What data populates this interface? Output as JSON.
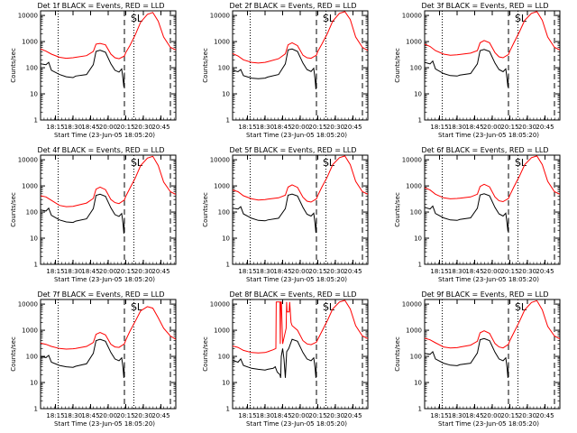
{
  "common": {
    "x_ticks": [
      "18:15",
      "18:30",
      "18:45",
      "20:00",
      "20:15",
      "20:30",
      "20:45"
    ],
    "y_ticks": [
      "1",
      "10",
      "100",
      "1000",
      "10000"
    ],
    "ylabel": "Counts/sec",
    "xlabel": "Start Time (23-Jun-05 18:05:20)",
    "annotation": "SL",
    "x_tick_times": [
      11,
      24,
      37,
      50,
      63,
      76,
      89
    ],
    "ylim": [
      1,
      15000
    ],
    "dotted_lines_x": [
      13,
      69
    ],
    "dashed_lines_x": [
      62,
      96
    ]
  },
  "chart_data": [
    {
      "type": "line",
      "yscale": "log",
      "xlim": [
        0,
        100
      ],
      "title": "Det 1f BLACK = Events, RED = LLD",
      "series": [
        {
          "name": "LLD",
          "color": "#ff0000",
          "x": [
            0,
            4,
            8,
            14,
            19,
            24,
            26,
            34,
            39,
            41,
            44,
            48,
            52,
            55,
            58,
            62,
            63,
            66,
            70,
            74,
            79,
            83,
            87,
            91,
            96,
            100
          ],
          "y": [
            520,
            430,
            330,
            250,
            230,
            240,
            250,
            290,
            420,
            800,
            850,
            750,
            330,
            240,
            220,
            280,
            380,
            700,
            1800,
            5500,
            11000,
            13000,
            6000,
            1500,
            600,
            480
          ]
        },
        {
          "name": "Events",
          "color": "#000000",
          "x": [
            0,
            4,
            6,
            8,
            14,
            19,
            24,
            26,
            34,
            39,
            41,
            44,
            48,
            52,
            55,
            58,
            60,
            61,
            61.6,
            62
          ],
          "y": [
            140,
            130,
            160,
            80,
            55,
            45,
            42,
            48,
            55,
            130,
            420,
            470,
            390,
            140,
            80,
            68,
            90,
            35,
            18,
            65
          ]
        }
      ]
    },
    {
      "type": "line",
      "yscale": "log",
      "xlim": [
        0,
        100
      ],
      "title": "Det 2f BLACK = Events, RED = LLD",
      "series": [
        {
          "name": "LLD",
          "color": "#ff0000",
          "x": [
            0,
            4,
            8,
            14,
            19,
            24,
            26,
            34,
            39,
            41,
            44,
            48,
            52,
            55,
            58,
            62,
            63,
            66,
            70,
            74,
            79,
            83,
            87,
            91,
            96,
            100
          ],
          "y": [
            350,
            280,
            200,
            160,
            150,
            160,
            170,
            220,
            340,
            750,
            900,
            700,
            300,
            240,
            230,
            300,
            420,
            800,
            2000,
            6000,
            12000,
            14000,
            7000,
            1500,
            600,
            450
          ]
        },
        {
          "name": "Events",
          "color": "#000000",
          "x": [
            0,
            4,
            6,
            8,
            14,
            19,
            24,
            26,
            34,
            39,
            41,
            44,
            48,
            52,
            55,
            58,
            60,
            61,
            61.6,
            62
          ],
          "y": [
            80,
            70,
            85,
            50,
            40,
            38,
            40,
            44,
            55,
            140,
            480,
            520,
            420,
            150,
            85,
            72,
            95,
            35,
            15,
            60
          ]
        }
      ]
    },
    {
      "type": "line",
      "yscale": "log",
      "xlim": [
        0,
        100
      ],
      "title": "Det 3f BLACK = Events, RED = LLD",
      "series": [
        {
          "name": "LLD",
          "color": "#ff0000",
          "x": [
            0,
            4,
            8,
            14,
            19,
            24,
            26,
            34,
            39,
            41,
            44,
            48,
            52,
            55,
            58,
            62,
            63,
            66,
            70,
            74,
            79,
            83,
            87,
            91,
            96,
            100
          ],
          "y": [
            800,
            650,
            450,
            330,
            300,
            310,
            320,
            360,
            450,
            900,
            1100,
            900,
            380,
            260,
            240,
            320,
            430,
            900,
            2300,
            6500,
            12000,
            14000,
            6500,
            1500,
            600,
            480
          ]
        },
        {
          "name": "Events",
          "color": "#000000",
          "x": [
            0,
            4,
            6,
            8,
            14,
            19,
            24,
            26,
            34,
            39,
            41,
            44,
            48,
            52,
            55,
            58,
            60,
            61,
            61.6,
            62
          ],
          "y": [
            160,
            140,
            180,
            90,
            60,
            50,
            48,
            52,
            60,
            140,
            450,
            500,
            420,
            150,
            85,
            70,
            90,
            35,
            18,
            60
          ]
        }
      ]
    },
    {
      "type": "line",
      "yscale": "log",
      "xlim": [
        0,
        100
      ],
      "title": "Det 4f BLACK = Events, RED = LLD",
      "series": [
        {
          "name": "LLD",
          "color": "#ff0000",
          "x": [
            0,
            4,
            8,
            14,
            19,
            24,
            26,
            34,
            39,
            41,
            44,
            48,
            52,
            55,
            58,
            62,
            63,
            66,
            70,
            74,
            79,
            83,
            87,
            91,
            96,
            100
          ],
          "y": [
            420,
            380,
            280,
            180,
            160,
            165,
            175,
            220,
            330,
            750,
            900,
            720,
            300,
            230,
            210,
            290,
            400,
            800,
            2000,
            6000,
            11500,
            13500,
            6000,
            1400,
            600,
            470
          ]
        },
        {
          "name": "Events",
          "color": "#000000",
          "x": [
            0,
            4,
            6,
            8,
            14,
            19,
            24,
            26,
            34,
            39,
            41,
            44,
            48,
            52,
            55,
            58,
            60,
            61,
            61.6,
            62
          ],
          "y": [
            120,
            110,
            140,
            75,
            50,
            42,
            40,
            45,
            55,
            135,
            430,
            480,
            400,
            145,
            80,
            68,
            88,
            35,
            15,
            60
          ]
        }
      ]
    },
    {
      "type": "line",
      "yscale": "log",
      "xlim": [
        0,
        100
      ],
      "title": "Det 5f BLACK = Events, RED = LLD",
      "series": [
        {
          "name": "LLD",
          "color": "#ff0000",
          "x": [
            0,
            4,
            8,
            14,
            19,
            24,
            26,
            34,
            39,
            41,
            44,
            48,
            52,
            55,
            58,
            62,
            63,
            66,
            70,
            74,
            79,
            83,
            87,
            91,
            96,
            100
          ],
          "y": [
            700,
            600,
            420,
            320,
            290,
            300,
            310,
            350,
            440,
            900,
            1100,
            880,
            370,
            260,
            240,
            320,
            430,
            900,
            2200,
            6500,
            12000,
            14000,
            6500,
            1500,
            600,
            480
          ]
        },
        {
          "name": "Events",
          "color": "#000000",
          "x": [
            0,
            4,
            6,
            8,
            14,
            19,
            24,
            26,
            34,
            39,
            41,
            44,
            48,
            52,
            55,
            58,
            60,
            61,
            61.6,
            62
          ],
          "y": [
            140,
            130,
            160,
            85,
            58,
            48,
            46,
            50,
            58,
            135,
            440,
            490,
            410,
            150,
            82,
            70,
            90,
            35,
            16,
            60
          ]
        }
      ]
    },
    {
      "type": "line",
      "yscale": "log",
      "xlim": [
        0,
        100
      ],
      "title": "Det 6f BLACK = Events, RED = LLD",
      "series": [
        {
          "name": "LLD",
          "color": "#ff0000",
          "x": [
            0,
            4,
            8,
            14,
            19,
            24,
            26,
            34,
            39,
            41,
            44,
            48,
            52,
            55,
            58,
            62,
            63,
            66,
            70,
            74,
            79,
            83,
            87,
            91,
            96,
            100
          ],
          "y": [
            850,
            700,
            480,
            350,
            320,
            330,
            340,
            380,
            480,
            950,
            1150,
            920,
            380,
            270,
            250,
            330,
            440,
            920,
            2300,
            6500,
            12000,
            14000,
            6500,
            1500,
            600,
            480
          ]
        },
        {
          "name": "Events",
          "color": "#000000",
          "x": [
            0,
            4,
            6,
            8,
            14,
            19,
            24,
            26,
            34,
            39,
            41,
            44,
            48,
            52,
            55,
            58,
            60,
            61,
            61.6,
            62
          ],
          "y": [
            150,
            130,
            170,
            88,
            60,
            50,
            48,
            52,
            60,
            140,
            450,
            500,
            420,
            150,
            85,
            70,
            90,
            35,
            18,
            60
          ]
        }
      ]
    },
    {
      "type": "line",
      "yscale": "log",
      "xlim": [
        0,
        100
      ],
      "title": "Det 7f BLACK = Events, RED = LLD",
      "series": [
        {
          "name": "LLD",
          "color": "#ff0000",
          "x": [
            0,
            4,
            8,
            14,
            19,
            24,
            26,
            34,
            39,
            41,
            44,
            48,
            52,
            55,
            58,
            62,
            63,
            66,
            70,
            74,
            79,
            83,
            87,
            91,
            96,
            100
          ],
          "y": [
            320,
            290,
            240,
            200,
            190,
            195,
            200,
            240,
            340,
            700,
            820,
            660,
            290,
            230,
            220,
            300,
            420,
            900,
            2200,
            5500,
            8000,
            7000,
            3000,
            1200,
            600,
            450
          ]
        },
        {
          "name": "Events",
          "color": "#000000",
          "x": [
            0,
            4,
            6,
            8,
            14,
            19,
            24,
            26,
            34,
            39,
            41,
            44,
            48,
            52,
            55,
            58,
            60,
            61,
            61.6,
            62
          ],
          "y": [
            100,
            90,
            110,
            60,
            45,
            40,
            38,
            42,
            52,
            130,
            400,
            450,
            380,
            140,
            80,
            68,
            88,
            35,
            15,
            60
          ]
        }
      ]
    },
    {
      "type": "line",
      "yscale": "log",
      "xlim": [
        0,
        100
      ],
      "title": "Det 8f BLACK = Events, RED = LLD",
      "series": [
        {
          "name": "LLD",
          "color": "#ff0000",
          "x": [
            0,
            4,
            8,
            14,
            19,
            24,
            26,
            30,
            32,
            32.3,
            33,
            35,
            35.3,
            35.6,
            36.1,
            37,
            39.6,
            39.9,
            40.3,
            41.8,
            42.2,
            43.2,
            44,
            48,
            52,
            55,
            58,
            62,
            63,
            66,
            70,
            74,
            79,
            83,
            87,
            91,
            96,
            100
          ],
          "y": [
            250,
            220,
            170,
            140,
            135,
            140,
            150,
            180,
            200,
            12000,
            12000,
            12000,
            300,
            12000,
            12000,
            300,
            1200,
            12000,
            5000,
            5000,
            12000,
            2000,
            1500,
            1000,
            400,
            300,
            280,
            350,
            450,
            900,
            2300,
            6500,
            12000,
            14000,
            6500,
            1500,
            600,
            480
          ]
        },
        {
          "name": "Events",
          "color": "#000000",
          "x": [
            0,
            4,
            6,
            8,
            14,
            19,
            24,
            26,
            30,
            31.5,
            33,
            35,
            35.5,
            36,
            37,
            38,
            39,
            40,
            41.5,
            44,
            48,
            52,
            55,
            58,
            60,
            61,
            61.6,
            62
          ],
          "y": [
            70,
            60,
            80,
            45,
            35,
            32,
            30,
            32,
            35,
            40,
            25,
            20,
            15,
            100,
            200,
            80,
            15,
            150,
            200,
            450,
            380,
            140,
            80,
            68,
            88,
            35,
            15,
            60
          ]
        }
      ]
    },
    {
      "type": "line",
      "yscale": "log",
      "xlim": [
        0,
        100
      ],
      "title": "Det 9f BLACK = Events, RED = LLD",
      "series": [
        {
          "name": "LLD",
          "color": "#ff0000",
          "x": [
            0,
            4,
            8,
            14,
            19,
            24,
            26,
            34,
            39,
            41,
            44,
            48,
            52,
            55,
            58,
            62,
            63,
            66,
            70,
            74,
            79,
            83,
            87,
            91,
            96,
            100
          ],
          "y": [
            500,
            430,
            330,
            230,
            210,
            215,
            225,
            270,
            380,
            800,
            950,
            760,
            310,
            230,
            210,
            290,
            400,
            820,
            2100,
            6000,
            11500,
            13500,
            6000,
            1400,
            600,
            470
          ]
        },
        {
          "name": "Events",
          "color": "#000000",
          "x": [
            0,
            4,
            6,
            8,
            14,
            19,
            24,
            26,
            34,
            39,
            41,
            44,
            48,
            52,
            55,
            58,
            60,
            61,
            61.6,
            62
          ],
          "y": [
            130,
            120,
            150,
            80,
            55,
            46,
            44,
            48,
            55,
            135,
            430,
            480,
            400,
            145,
            80,
            68,
            88,
            35,
            15,
            60
          ]
        }
      ]
    }
  ]
}
